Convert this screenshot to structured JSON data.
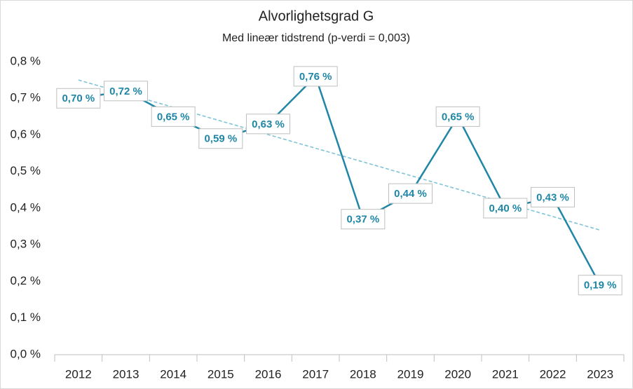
{
  "chart_data": {
    "type": "line",
    "title": "Alvorlighetsgrad G",
    "subtitle": "Med lineær tidstrend (p-verdi = 0,003)",
    "categories": [
      "2012",
      "2013",
      "2014",
      "2015",
      "2016",
      "2017",
      "2018",
      "2019",
      "2020",
      "2021",
      "2022",
      "2023"
    ],
    "series": [
      {
        "color": "#1f86a6",
        "values": [
          0.7,
          0.72,
          0.65,
          0.59,
          0.63,
          0.76,
          0.37,
          0.44,
          0.65,
          0.4,
          0.43,
          0.19
        ],
        "value_labels": [
          "0,70 %",
          "0,72 %",
          "0,65 %",
          "0,59 %",
          "0,63 %",
          "0,76 %",
          "0,37 %",
          "0,44 %",
          "0,65 %",
          "0,40 %",
          "0,43 %",
          "0,19 %"
        ]
      }
    ],
    "trendline": {
      "values": [
        0.75,
        0.34
      ],
      "color": "#7fc4d6",
      "dashed": true
    },
    "ylim": [
      0,
      0.8
    ],
    "yticks": [
      {
        "value": 0,
        "label": "0,0 %"
      },
      {
        "value": 0.1,
        "label": "0,1 %"
      },
      {
        "value": 0.2,
        "label": "0,2 %"
      },
      {
        "value": 0.3,
        "label": "0,3 %"
      },
      {
        "value": 0.4,
        "label": "0,4 %"
      },
      {
        "value": 0.5,
        "label": "0,5 %"
      },
      {
        "value": 0.6,
        "label": "0,6 %"
      },
      {
        "value": 0.7,
        "label": "0,7 %"
      },
      {
        "value": 0.8,
        "label": "0,8 %"
      }
    ],
    "grid": false
  }
}
